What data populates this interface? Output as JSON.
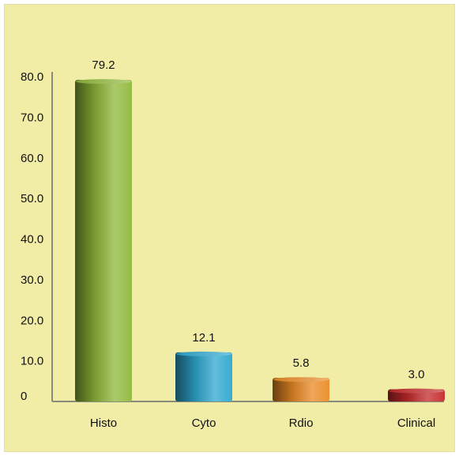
{
  "chart_data": {
    "type": "bar",
    "categories": [
      "Histo",
      "Cyto",
      "Rdio",
      "Clinical"
    ],
    "values": [
      79.2,
      12.1,
      5.8,
      3.0
    ],
    "data_labels": [
      "79.2",
      "12.1",
      "5.8",
      "3.0"
    ],
    "title": "",
    "xlabel": "",
    "ylabel": "",
    "ylim": [
      0,
      80
    ],
    "yticks": [
      0,
      10,
      20,
      30,
      40,
      50,
      60,
      70,
      80
    ],
    "ytick_labels": [
      "0",
      "10.0",
      "20.0",
      "30.0",
      "40.0",
      "50.0",
      "60.0",
      "70.0",
      "80.0"
    ],
    "grid": false,
    "legend": "none",
    "colors": [
      "#8fb83a",
      "#2ea7cf",
      "#e98a24",
      "#c42a2a"
    ],
    "background": "#f1eca6"
  }
}
